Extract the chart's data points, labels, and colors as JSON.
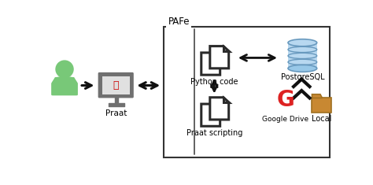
{
  "title": "PAFe",
  "bg_color": "#ffffff",
  "labels": {
    "praat": "Praat",
    "python_code": "Python code",
    "praat_scripting": "Praat scripting",
    "postgresql": "PostgreSQL",
    "google_drive": "Google Drive",
    "local": "Local"
  },
  "figsize": [
    4.74,
    2.35
  ],
  "dpi": 100,
  "person_color": "#78c878",
  "monitor_color": "#707070",
  "doc_edge_color": "#2a2a2a",
  "doc_face_color": "#ffffff",
  "db_face_color": "#b8d8f0",
  "db_edge_color": "#6899be",
  "arrow_color": "#111111",
  "google_color": "#dd2222",
  "folder_color": "#c88832"
}
